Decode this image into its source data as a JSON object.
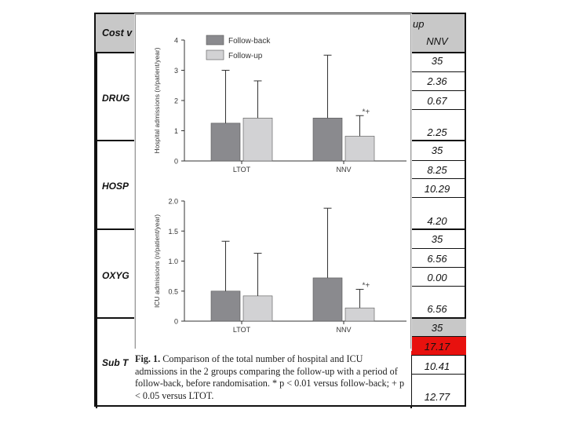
{
  "table": {
    "header_left": "Cost v",
    "header_right_fragment": "up",
    "col_header": "NNV",
    "groups": [
      {
        "label": "DRUG",
        "values": [
          "35",
          "2.36",
          "0.67",
          "2.25"
        ]
      },
      {
        "label": "HOSP",
        "values": [
          "35",
          "8.25",
          "10.29",
          "4.20"
        ]
      },
      {
        "label": "OXYG",
        "values": [
          "35",
          "6.56",
          "0.00",
          "6.56"
        ]
      },
      {
        "label": "Sub T",
        "values": [
          "35",
          "17.17",
          "10.41",
          "12.77"
        ]
      }
    ],
    "highlight_color": "#e8110e",
    "shade_color": "#c8c8c8"
  },
  "figure": {
    "caption_bold": "Fig. 1.",
    "caption_text": "Comparison of the total number of hospital and ICU admissions in the 2 groups comparing the follow-up with a period of follow-back, before randomisation. * p < 0.01 versus follow-back; + p < 0.05 versus LTOT.",
    "legend": [
      {
        "label": "Follow-back",
        "color": "#8a8a8e"
      },
      {
        "label": "Follow-up",
        "color": "#d2d2d4"
      }
    ]
  },
  "chart_data": [
    {
      "type": "bar",
      "ylabel": "Hospital admissions (n/patient/year)",
      "categories": [
        "LTOT",
        "NNV"
      ],
      "ylim": [
        0,
        4
      ],
      "yticks": [
        "0",
        "1",
        "2",
        "3",
        "4"
      ],
      "series": [
        {
          "name": "Follow-back",
          "values": [
            1.25,
            1.42
          ],
          "error_upper": [
            3.0,
            3.5
          ]
        },
        {
          "name": "Follow-up",
          "values": [
            1.42,
            0.82
          ],
          "error_upper": [
            2.65,
            1.5
          ]
        }
      ],
      "annotations": [
        {
          "text": "*+",
          "category": "NNV",
          "series": "Follow-up"
        }
      ]
    },
    {
      "type": "bar",
      "ylabel": "ICU admissions (n/patient/year)",
      "categories": [
        "LTOT",
        "NNV"
      ],
      "ylim": [
        0,
        2.0
      ],
      "yticks": [
        "0",
        "0.5",
        "1.0",
        "1.5",
        "2.0"
      ],
      "series": [
        {
          "name": "Follow-back",
          "values": [
            0.5,
            0.72
          ],
          "error_upper": [
            1.33,
            1.88
          ]
        },
        {
          "name": "Follow-up",
          "values": [
            0.42,
            0.22
          ],
          "error_upper": [
            1.13,
            0.53
          ]
        }
      ],
      "annotations": [
        {
          "text": "*+",
          "category": "NNV",
          "series": "Follow-up"
        }
      ]
    }
  ]
}
